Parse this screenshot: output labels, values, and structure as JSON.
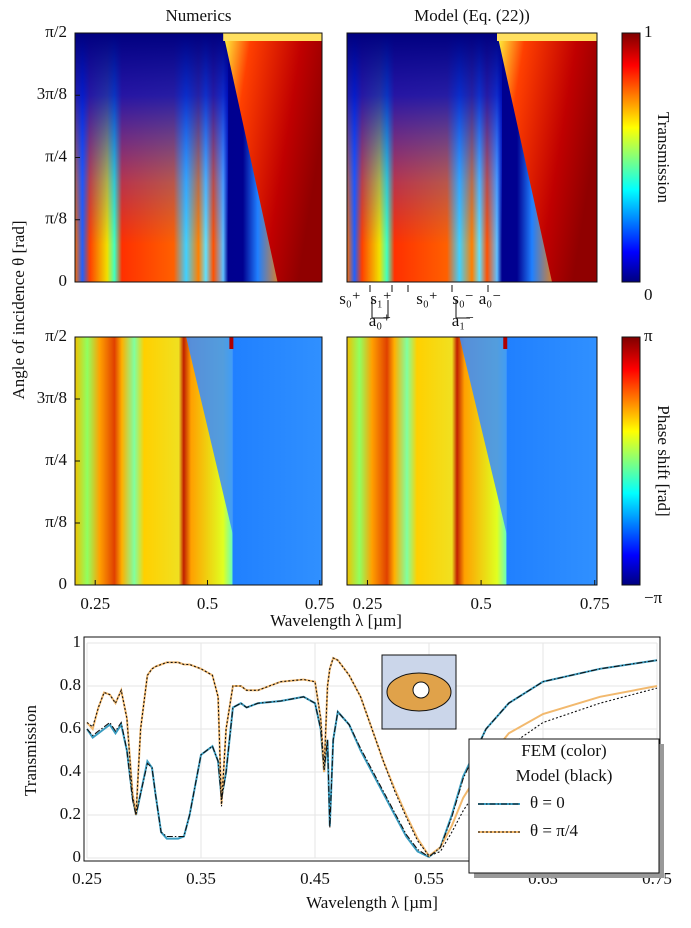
{
  "figure": {
    "ylabel": "Angle of incidence θ [rad]",
    "xlabel": "Wavelength λ [µm]"
  },
  "chart_data": [
    {
      "type": "heatmap",
      "title": "Numerics",
      "xlim": [
        0.205,
        0.755
      ],
      "ylim": [
        0,
        1.5708
      ],
      "yticks": [
        0,
        {
          "value": 0.3927,
          "label": "π/8"
        },
        {
          "value": 0.7854,
          "label": "π/4"
        },
        {
          "value": 1.1781,
          "label": "3π/8"
        },
        {
          "value": 1.5708,
          "label": "π/2"
        }
      ]
    },
    {
      "type": "heatmap",
      "title": "Model (Eq. (22))",
      "xlim": [
        0.205,
        0.755
      ],
      "ylim": [
        0,
        1.5708
      ],
      "colorbar_label": "Transmission",
      "colorbar_ticks": [
        0,
        1
      ],
      "annotations": [
        "s₀⁺",
        "s₁⁺",
        "a₀⁺",
        "s₀⁺",
        "s₀⁻",
        "a₁⁻",
        "a₀⁻"
      ]
    },
    {
      "type": "heatmap",
      "xlim": [
        0.205,
        0.755
      ],
      "ylim": [
        0,
        1.5708
      ],
      "xticks": [
        0.25,
        0.5,
        0.75
      ],
      "yticks": [
        0,
        {
          "value": 0.3927,
          "label": "π/8"
        },
        {
          "value": 0.7854,
          "label": "π/4"
        },
        {
          "value": 1.1781,
          "label": "3π/8"
        },
        {
          "value": 1.5708,
          "label": "π/2"
        }
      ]
    },
    {
      "type": "heatmap",
      "xlim": [
        0.205,
        0.755
      ],
      "ylim": [
        0,
        1.5708
      ],
      "xticks": [
        0.25,
        0.5,
        0.75
      ],
      "colorbar_label": "Phase shift [rad]",
      "colorbar_ticks": [
        {
          "value": -3.1416,
          "label": "−π"
        },
        {
          "value": 3.1416,
          "label": "π"
        }
      ]
    },
    {
      "type": "line",
      "xlabel": "Wavelength λ [µm]",
      "ylabel": "Transmission",
      "xlim": [
        0.25,
        0.75
      ],
      "ylim": [
        0,
        1
      ],
      "xticks": [
        0.25,
        0.35,
        0.45,
        0.55,
        0.65,
        0.75
      ],
      "yticks": [
        0,
        0.2,
        0.4,
        0.6,
        0.8,
        1
      ],
      "grid": true,
      "legend_title": [
        "FEM (color)",
        "Model (black)"
      ],
      "legend": "lower right",
      "x": [
        0.25,
        0.255,
        0.26,
        0.265,
        0.27,
        0.275,
        0.28,
        0.285,
        0.29,
        0.293,
        0.297,
        0.303,
        0.307,
        0.31,
        0.315,
        0.32,
        0.33,
        0.335,
        0.34,
        0.35,
        0.36,
        0.365,
        0.368,
        0.372,
        0.378,
        0.385,
        0.39,
        0.4,
        0.42,
        0.44,
        0.45,
        0.455,
        0.458,
        0.461,
        0.463,
        0.466,
        0.47,
        0.48,
        0.49,
        0.5,
        0.51,
        0.52,
        0.53,
        0.54,
        0.55,
        0.56,
        0.57,
        0.58,
        0.6,
        0.62,
        0.65,
        0.7,
        0.75
      ],
      "series": [
        {
          "name": "θ = 0",
          "color": "#3a9cc0",
          "values": [
            0.6,
            0.56,
            0.58,
            0.6,
            0.62,
            0.58,
            0.62,
            0.5,
            0.28,
            0.2,
            0.3,
            0.45,
            0.42,
            0.3,
            0.12,
            0.09,
            0.09,
            0.1,
            0.2,
            0.48,
            0.52,
            0.45,
            0.28,
            0.4,
            0.7,
            0.72,
            0.7,
            0.72,
            0.73,
            0.75,
            0.72,
            0.6,
            0.4,
            0.55,
            0.15,
            0.55,
            0.68,
            0.62,
            0.5,
            0.4,
            0.3,
            0.2,
            0.1,
            0.03,
            0.005,
            0.05,
            0.2,
            0.38,
            0.6,
            0.72,
            0.82,
            0.88,
            0.92
          ],
          "model_values": [
            0.6,
            0.57,
            0.59,
            0.61,
            0.63,
            0.59,
            0.63,
            0.5,
            0.27,
            0.2,
            0.3,
            0.44,
            0.42,
            0.3,
            0.12,
            0.1,
            0.1,
            0.1,
            0.2,
            0.48,
            0.52,
            0.45,
            0.27,
            0.4,
            0.7,
            0.72,
            0.7,
            0.72,
            0.73,
            0.75,
            0.72,
            0.6,
            0.41,
            0.55,
            0.14,
            0.55,
            0.68,
            0.62,
            0.51,
            0.41,
            0.31,
            0.21,
            0.11,
            0.04,
            0.005,
            0.05,
            0.19,
            0.37,
            0.6,
            0.72,
            0.82,
            0.88,
            0.92
          ]
        },
        {
          "name": "θ = π/4",
          "color": "#f2b96e",
          "values": [
            0.63,
            0.6,
            0.7,
            0.77,
            0.76,
            0.72,
            0.78,
            0.65,
            0.3,
            0.2,
            0.6,
            0.85,
            0.88,
            0.89,
            0.9,
            0.91,
            0.91,
            0.9,
            0.9,
            0.88,
            0.85,
            0.75,
            0.25,
            0.6,
            0.8,
            0.8,
            0.78,
            0.78,
            0.82,
            0.83,
            0.82,
            0.65,
            0.4,
            0.8,
            0.88,
            0.93,
            0.92,
            0.85,
            0.75,
            0.6,
            0.45,
            0.32,
            0.2,
            0.09,
            0.01,
            0.05,
            0.15,
            0.28,
            0.45,
            0.58,
            0.67,
            0.75,
            0.8
          ],
          "model_values": [
            0.63,
            0.61,
            0.7,
            0.77,
            0.76,
            0.72,
            0.78,
            0.65,
            0.29,
            0.2,
            0.6,
            0.85,
            0.88,
            0.89,
            0.9,
            0.91,
            0.91,
            0.9,
            0.9,
            0.88,
            0.85,
            0.75,
            0.24,
            0.6,
            0.8,
            0.8,
            0.78,
            0.78,
            0.82,
            0.83,
            0.82,
            0.65,
            0.41,
            0.8,
            0.88,
            0.93,
            0.92,
            0.85,
            0.75,
            0.6,
            0.45,
            0.31,
            0.19,
            0.08,
            0.01,
            0.03,
            0.12,
            0.22,
            0.38,
            0.52,
            0.63,
            0.72,
            0.79
          ]
        }
      ]
    }
  ]
}
